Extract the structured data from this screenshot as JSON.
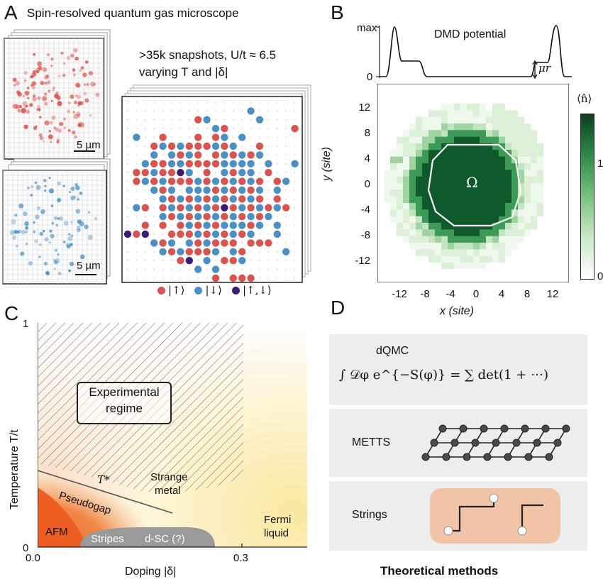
{
  "panelA": {
    "label": "A",
    "title": "Spin-resolved quantum gas microscope",
    "snapshots_line1": ">35k snapshots, U/t ≈ 6.5",
    "snapshots_line2": "varying T and |δ|",
    "scalebar_top": "5 µm",
    "scalebar_bottom": "5 µm",
    "legend": [
      {
        "symbol": "|↑⟩",
        "color": "#d9534f"
      },
      {
        "symbol": "|↓⟩",
        "color": "#4a90c4"
      },
      {
        "symbol": "|↑,↓⟩",
        "color": "#3b1a78"
      }
    ]
  },
  "panelB": {
    "label": "B",
    "dmd_title": "DMD potential",
    "dmd_max": "max",
    "dmd_zero": "0",
    "mu_label": "μr",
    "region_label": "Ω",
    "colorbar_label": "⟨n̂⟩",
    "colorbar_ticks": [
      "1",
      "0"
    ],
    "x_axis_label": "x (site)",
    "y_axis_label": "y (site)",
    "x_ticks": [
      "-12",
      "-8",
      "-4",
      "0",
      "4",
      "8",
      "12"
    ],
    "y_ticks": [
      "12",
      "8",
      "4",
      "0",
      "-4",
      "-8",
      "-12"
    ]
  },
  "panelC": {
    "label": "C",
    "y_axis_label": "Temperature T/t",
    "x_axis_label": "Doping |δ|",
    "y_ticks": [
      "1",
      "0"
    ],
    "x_ticks": [
      "0.0",
      "0.3"
    ],
    "experimental_line1": "Experimental",
    "experimental_line2": "regime",
    "tstar": "T*",
    "strange_line1": "Strange",
    "strange_line2": "metal",
    "pseudogap": "Pseudogap",
    "afm": "AFM",
    "stripes": "Stripes",
    "dsc": "d-SC (?)",
    "fermi_line1": "Fermi",
    "fermi_line2": "liquid"
  },
  "panelD": {
    "label": "D",
    "dqmc": "dQMC",
    "equation": "∫ 𝒟φ e^{−S(φ)} = ∑ det(1 + ⋯)",
    "metts": "METTS",
    "strings": "Strings",
    "caption": "Theoretical methods"
  },
  "colors": {
    "up": "#d9534f",
    "down": "#4a90c4",
    "double": "#3b1a78",
    "green_dark": "#0f5a2c",
    "strings_bg": "#f1c4a7"
  }
}
